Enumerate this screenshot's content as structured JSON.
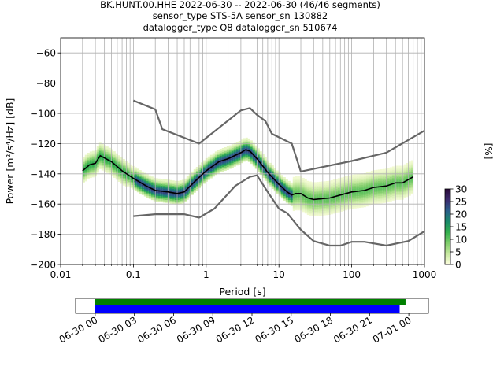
{
  "title_lines": [
    "BK.HUNT.00.HHE   2022-06-30 -- 2022-06-30  (46/46 segments)",
    "sensor_type STS-5A sensor_sn 130882",
    "datalogger_type Q8 datalogger_sn 510674"
  ],
  "chart_data": {
    "type": "heatmap",
    "xlabel": "Period [s]",
    "ylabel": "Power [m²/s⁴/Hz] [dB]",
    "xscale": "log",
    "xlim": [
      0.01,
      1000
    ],
    "ylim": [
      -200,
      -50
    ],
    "xticks": [
      0.01,
      0.1,
      1,
      10,
      100,
      1000
    ],
    "xtick_labels": [
      "0.01",
      "0.1",
      "1",
      "10",
      "100",
      "1000"
    ],
    "yticks": [
      -200,
      -180,
      -160,
      -140,
      -120,
      -100,
      -80,
      -60
    ],
    "ytick_labels": [
      "−200",
      "−180",
      "−160",
      "−140",
      "−120",
      "−100",
      "−80",
      "−60"
    ],
    "grid": true,
    "colorbar": {
      "label": "[%]",
      "range": [
        0,
        30
      ],
      "ticks": [
        0,
        5,
        10,
        15,
        20,
        25,
        30
      ],
      "colors": [
        "#ffffe0",
        "#c7e9a0",
        "#7fcd6a",
        "#33b04e",
        "#1a8a6a",
        "#2a5f8a",
        "#3b2b6e",
        "#2a0a3a"
      ]
    },
    "mean_curve": {
      "color": "#000000",
      "x": [
        0.02,
        0.025,
        0.03,
        0.035,
        0.05,
        0.07,
        0.1,
        0.15,
        0.2,
        0.3,
        0.4,
        0.5,
        0.7,
        1,
        1.5,
        2,
        3,
        3.5,
        4,
        5,
        7,
        10,
        13,
        15,
        17,
        20,
        25,
        30,
        50,
        70,
        100,
        150,
        200,
        300,
        400,
        500,
        700
      ],
      "y": [
        -138,
        -134,
        -133,
        -128,
        -132,
        -138,
        -143,
        -148,
        -151,
        -152,
        -153,
        -152,
        -145,
        -138,
        -132,
        -130,
        -126,
        -124,
        -125,
        -130,
        -139,
        -147,
        -152,
        -154,
        -153,
        -153,
        -156,
        -157,
        -156,
        -154,
        -152,
        -151,
        -149,
        -148,
        -146,
        -146,
        -142
      ]
    },
    "noise_models": [
      {
        "color": "#666666",
        "x": [
          0.1,
          0.2,
          0.25,
          0.8,
          3,
          4,
          5,
          6.5,
          8,
          15,
          20,
          100,
          300,
          1000
        ],
        "y": [
          -91.5,
          -97.4,
          -110.5,
          -120,
          -98,
          -96.5,
          -101,
          -105,
          -113.5,
          -120,
          -138.5,
          -131.5,
          -126,
          -111.4
        ]
      },
      {
        "color": "#666666",
        "x": [
          0.1,
          0.2,
          0.5,
          0.8,
          1.3,
          2.5,
          4,
          5,
          7,
          10,
          13,
          20,
          30,
          50,
          70,
          100,
          150,
          300,
          600,
          1000
        ],
        "y": [
          -168,
          -166.7,
          -166.7,
          -169,
          -163,
          -148,
          -142,
          -141,
          -152,
          -163,
          -166,
          -177,
          -184.5,
          -187.5,
          -187.5,
          -185,
          -185,
          -187.5,
          -184.5,
          -178
        ]
      }
    ],
    "data_coverage": {
      "tick_labels": [
        "06-30 00",
        "06-30 03",
        "06-30 06",
        "06-30 09",
        "06-30 12",
        "06-30 15",
        "06-30 18",
        "06-30 21",
        "07-01 00"
      ],
      "range_hours": [
        -1.5,
        25.5
      ],
      "available_hours": [
        0,
        23.75
      ],
      "used_hours": [
        0,
        23.3
      ],
      "available_color": "#008000",
      "used_color": "#0000ff"
    }
  }
}
